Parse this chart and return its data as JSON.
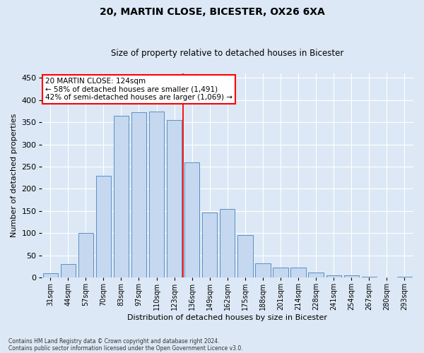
{
  "title1": "20, MARTIN CLOSE, BICESTER, OX26 6XA",
  "title2": "Size of property relative to detached houses in Bicester",
  "xlabel": "Distribution of detached houses by size in Bicester",
  "ylabel": "Number of detached properties",
  "categories": [
    "31sqm",
    "44sqm",
    "57sqm",
    "70sqm",
    "83sqm",
    "97sqm",
    "110sqm",
    "123sqm",
    "136sqm",
    "149sqm",
    "162sqm",
    "175sqm",
    "188sqm",
    "201sqm",
    "214sqm",
    "228sqm",
    "241sqm",
    "254sqm",
    "267sqm",
    "280sqm",
    "293sqm"
  ],
  "values": [
    10,
    30,
    100,
    230,
    365,
    373,
    374,
    355,
    260,
    147,
    154,
    95,
    32,
    22,
    22,
    11,
    5,
    5,
    1,
    0,
    2
  ],
  "bar_color": "#c5d8f0",
  "bar_edge_color": "#5a8fc3",
  "highlight_index": 7,
  "highlight_color": "#ff0000",
  "ylim": [
    0,
    460
  ],
  "yticks": [
    0,
    50,
    100,
    150,
    200,
    250,
    300,
    350,
    400,
    450
  ],
  "annotation_title": "20 MARTIN CLOSE: 124sqm",
  "annotation_line1": "← 58% of detached houses are smaller (1,491)",
  "annotation_line2": "42% of semi-detached houses are larger (1,069) →",
  "footer1": "Contains HM Land Registry data © Crown copyright and database right 2024.",
  "footer2": "Contains public sector information licensed under the Open Government Licence v3.0.",
  "bg_color": "#dce8f5",
  "plot_bg_color": "#dce8f5",
  "title1_fontsize": 10,
  "title2_fontsize": 8.5,
  "xlabel_fontsize": 8,
  "ylabel_fontsize": 8,
  "tick_fontsize": 7,
  "ytick_fontsize": 8,
  "footer_fontsize": 5.5,
  "annotation_fontsize": 7.5
}
